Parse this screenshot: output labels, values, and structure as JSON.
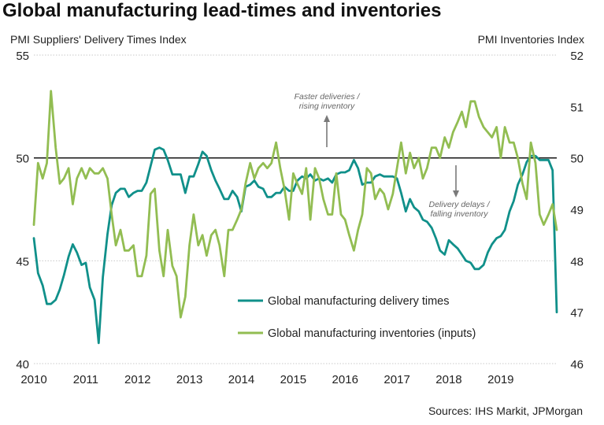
{
  "chart_data": {
    "type": "line",
    "title": "Global manufacturing lead-times and inventories",
    "y_left_label": "PMI Suppliers' Delivery Times Index",
    "y_right_label": "PMI Inventories Index",
    "y_left_range": [
      40,
      55
    ],
    "y_left_ticks": [
      "40",
      "45",
      "50",
      "55"
    ],
    "y_right_range": [
      46,
      52
    ],
    "y_right_ticks": [
      "46",
      "47",
      "48",
      "49",
      "50",
      "51",
      "52"
    ],
    "x_range": [
      2010,
      2020.08
    ],
    "x_ticks": [
      "2010",
      "2011",
      "2012",
      "2013",
      "2014",
      "2015",
      "2016",
      "2017",
      "2018",
      "2019"
    ],
    "reference_line": 50,
    "grid": "horizontal dotted at left-axis ticks",
    "legend_position": "bottom-center",
    "series": [
      {
        "name": "Global manufacturing delivery times",
        "axis": "left",
        "color": "#10908a",
        "x": [
          2010.0,
          2010.08,
          2010.17,
          2010.25,
          2010.33,
          2010.42,
          2010.5,
          2010.58,
          2010.67,
          2010.75,
          2010.83,
          2010.92,
          2011.0,
          2011.08,
          2011.17,
          2011.25,
          2011.33,
          2011.42,
          2011.5,
          2011.58,
          2011.67,
          2011.75,
          2011.83,
          2011.92,
          2012.0,
          2012.08,
          2012.17,
          2012.25,
          2012.33,
          2012.42,
          2012.5,
          2012.58,
          2012.67,
          2012.75,
          2012.83,
          2012.92,
          2013.0,
          2013.08,
          2013.17,
          2013.25,
          2013.33,
          2013.42,
          2013.5,
          2013.58,
          2013.67,
          2013.75,
          2013.83,
          2013.92,
          2014.0,
          2014.08,
          2014.17,
          2014.25,
          2014.33,
          2014.42,
          2014.5,
          2014.58,
          2014.67,
          2014.75,
          2014.83,
          2014.92,
          2015.0,
          2015.08,
          2015.17,
          2015.25,
          2015.33,
          2015.42,
          2015.5,
          2015.58,
          2015.67,
          2015.75,
          2015.83,
          2015.92,
          2016.0,
          2016.08,
          2016.17,
          2016.25,
          2016.33,
          2016.42,
          2016.5,
          2016.58,
          2016.67,
          2016.75,
          2016.83,
          2016.92,
          2017.0,
          2017.08,
          2017.17,
          2017.25,
          2017.33,
          2017.42,
          2017.5,
          2017.58,
          2017.67,
          2017.75,
          2017.83,
          2017.92,
          2018.0,
          2018.08,
          2018.17,
          2018.25,
          2018.33,
          2018.42,
          2018.5,
          2018.58,
          2018.67,
          2018.75,
          2018.83,
          2018.92,
          2019.0,
          2019.08,
          2019.17,
          2019.25,
          2019.33,
          2019.42,
          2019.5,
          2019.58,
          2019.67,
          2019.75,
          2019.83,
          2019.92,
          2020.0,
          2020.08
        ],
        "values": [
          46.1,
          44.4,
          43.8,
          42.9,
          42.9,
          43.1,
          43.6,
          44.3,
          45.2,
          45.8,
          45.4,
          44.8,
          44.9,
          43.7,
          43.1,
          41.0,
          44.2,
          46.3,
          47.7,
          48.3,
          48.5,
          48.5,
          48.1,
          48.3,
          48.4,
          48.4,
          48.8,
          49.6,
          50.4,
          50.5,
          50.4,
          49.9,
          49.2,
          49.2,
          49.2,
          48.3,
          49.1,
          49.1,
          49.7,
          50.3,
          50.1,
          49.4,
          48.9,
          48.5,
          48.0,
          48.0,
          48.4,
          48.1,
          47.4,
          48.6,
          48.7,
          48.9,
          48.6,
          48.5,
          48.1,
          48.1,
          48.3,
          48.3,
          48.6,
          48.4,
          48.4,
          48.9,
          49.1,
          49.0,
          49.2,
          48.9,
          49.0,
          48.9,
          49.0,
          48.8,
          49.2,
          49.3,
          49.3,
          49.4,
          49.9,
          49.5,
          48.7,
          48.8,
          48.8,
          49.1,
          49.2,
          49.1,
          49.1,
          49.1,
          49.0,
          48.3,
          47.4,
          48.0,
          47.6,
          47.4,
          47.0,
          46.9,
          46.6,
          46.1,
          45.5,
          45.3,
          46.0,
          45.8,
          45.6,
          45.3,
          45.0,
          44.9,
          44.6,
          44.6,
          44.8,
          45.4,
          45.8,
          46.1,
          46.2,
          46.5,
          47.4,
          47.9,
          48.7,
          49.2,
          49.8,
          50.1,
          50.1,
          49.9,
          49.9,
          49.9,
          49.4,
          42.5
        ]
      },
      {
        "name": "Global manufacturing inventories (inputs)",
        "axis": "right",
        "color": "#92bd52",
        "x": [
          2010.0,
          2010.08,
          2010.17,
          2010.25,
          2010.33,
          2010.42,
          2010.5,
          2010.58,
          2010.67,
          2010.75,
          2010.83,
          2010.92,
          2011.0,
          2011.08,
          2011.17,
          2011.25,
          2011.33,
          2011.42,
          2011.5,
          2011.58,
          2011.67,
          2011.75,
          2011.83,
          2011.92,
          2012.0,
          2012.08,
          2012.17,
          2012.25,
          2012.33,
          2012.42,
          2012.5,
          2012.58,
          2012.67,
          2012.75,
          2012.83,
          2012.92,
          2013.0,
          2013.08,
          2013.17,
          2013.25,
          2013.33,
          2013.42,
          2013.5,
          2013.58,
          2013.67,
          2013.75,
          2013.83,
          2013.92,
          2014.0,
          2014.08,
          2014.17,
          2014.25,
          2014.33,
          2014.42,
          2014.5,
          2014.58,
          2014.67,
          2014.75,
          2014.83,
          2014.92,
          2015.0,
          2015.08,
          2015.17,
          2015.25,
          2015.33,
          2015.42,
          2015.5,
          2015.58,
          2015.67,
          2015.75,
          2015.83,
          2015.92,
          2016.0,
          2016.08,
          2016.17,
          2016.25,
          2016.33,
          2016.42,
          2016.5,
          2016.58,
          2016.67,
          2016.75,
          2016.83,
          2016.92,
          2017.0,
          2017.08,
          2017.17,
          2017.25,
          2017.33,
          2017.42,
          2017.5,
          2017.58,
          2017.67,
          2017.75,
          2017.83,
          2017.92,
          2018.0,
          2018.08,
          2018.17,
          2018.25,
          2018.33,
          2018.42,
          2018.5,
          2018.58,
          2018.67,
          2018.75,
          2018.83,
          2018.92,
          2019.0,
          2019.08,
          2019.17,
          2019.25,
          2019.33,
          2019.42,
          2019.5,
          2019.58,
          2019.67,
          2019.75,
          2019.83,
          2019.92,
          2020.0,
          2020.08
        ],
        "values": [
          48.7,
          49.9,
          49.6,
          49.9,
          51.3,
          50.2,
          49.5,
          49.6,
          49.8,
          49.1,
          49.6,
          49.8,
          49.6,
          49.8,
          49.7,
          49.7,
          49.8,
          49.6,
          48.9,
          48.3,
          48.6,
          48.2,
          48.2,
          48.3,
          47.7,
          47.7,
          48.1,
          49.3,
          49.4,
          48.2,
          47.7,
          48.6,
          47.9,
          47.7,
          46.9,
          47.3,
          48.3,
          48.9,
          48.3,
          48.5,
          48.1,
          48.5,
          48.6,
          48.3,
          47.7,
          48.6,
          48.6,
          48.8,
          49.0,
          49.5,
          49.9,
          49.6,
          49.8,
          49.9,
          49.8,
          49.9,
          50.3,
          49.8,
          49.4,
          48.8,
          49.7,
          49.5,
          49.3,
          49.8,
          48.8,
          49.8,
          49.6,
          49.2,
          48.9,
          48.9,
          49.7,
          48.9,
          48.8,
          48.5,
          48.2,
          48.6,
          48.9,
          49.8,
          49.7,
          49.2,
          49.4,
          49.3,
          49.0,
          49.3,
          49.8,
          50.3,
          49.7,
          50.1,
          49.8,
          50.0,
          49.6,
          49.8,
          50.2,
          50.2,
          50.0,
          50.4,
          50.2,
          50.5,
          50.7,
          50.9,
          50.6,
          51.1,
          51.1,
          50.8,
          50.6,
          50.5,
          50.4,
          50.6,
          50.0,
          50.6,
          50.3,
          50.3,
          50.0,
          49.5,
          49.2,
          50.3,
          49.9,
          48.9,
          48.7,
          48.9,
          49.1,
          48.6
        ]
      }
    ],
    "annotations": [
      {
        "lines": [
          "Faster deliveries /",
          "rising inventory"
        ],
        "arrow": "up"
      },
      {
        "lines": [
          "Delivery delays /",
          "falling inventory"
        ],
        "arrow": "down"
      }
    ]
  },
  "source_text": "Sources: IHS Markit, JPMorgan"
}
